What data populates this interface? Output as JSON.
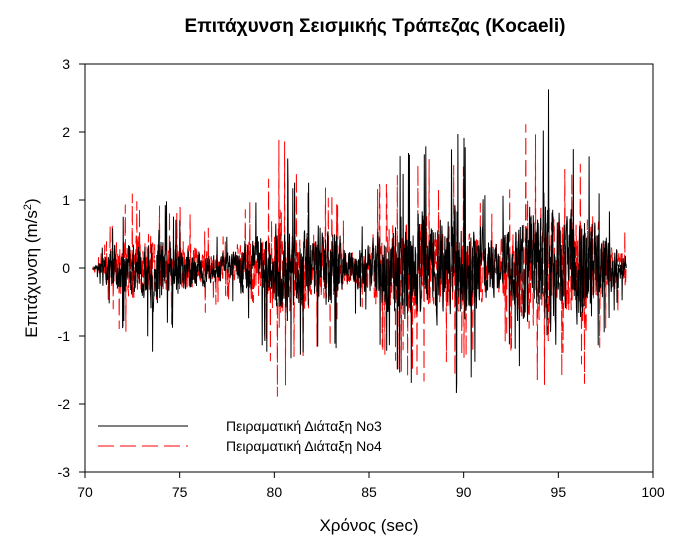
{
  "chart_data": {
    "type": "line",
    "title": "Επιτάχυνση Σεισμικής Τράπεζας (Kocaeli)",
    "xlabel": "Χρόνος (sec)",
    "ylabel_main": "Επιτάχυνση (m/s",
    "ylabel_sup": "2",
    "ylabel_tail": ")",
    "xlim": [
      70,
      100
    ],
    "ylim": [
      -3,
      3
    ],
    "xticks": [
      70,
      75,
      80,
      85,
      90,
      95,
      100
    ],
    "yticks": [
      -3,
      -2,
      -1,
      0,
      1,
      2,
      3
    ],
    "grid": false,
    "legend_position": "bottom-left",
    "x_range": [
      70.4,
      98.6
    ],
    "series": [
      {
        "name": "Πειραματική Διάταξη Νο3",
        "color": "#000000",
        "dash": "solid",
        "envelope": [
          [
            70.4,
            0.05
          ],
          [
            70.6,
            0.1
          ],
          [
            70.9,
            0.3
          ],
          [
            71.5,
            0.8
          ],
          [
            72.3,
            1.0
          ],
          [
            73.1,
            1.0
          ],
          [
            73.6,
            1.5
          ],
          [
            74.5,
            0.9
          ],
          [
            75.5,
            0.8
          ],
          [
            76.5,
            0.6
          ],
          [
            77.5,
            0.5
          ],
          [
            78.5,
            0.9
          ],
          [
            79.5,
            1.2
          ],
          [
            80.4,
            1.9
          ],
          [
            81.2,
            1.3
          ],
          [
            82.3,
            1.4
          ],
          [
            82.8,
            1.6
          ],
          [
            83.8,
            0.7
          ],
          [
            84.7,
            0.7
          ],
          [
            85.6,
            1.2
          ],
          [
            86.4,
            1.6
          ],
          [
            87.5,
            2.0
          ],
          [
            88.3,
            1.8
          ],
          [
            89.0,
            1.6
          ],
          [
            89.8,
            2.1
          ],
          [
            90.8,
            1.3
          ],
          [
            91.8,
            1.0
          ],
          [
            92.4,
            1.2
          ],
          [
            93.3,
            2.0
          ],
          [
            94.0,
            1.9
          ],
          [
            94.6,
            2.9
          ],
          [
            95.3,
            1.7
          ],
          [
            96.0,
            1.8
          ],
          [
            96.7,
            1.8
          ],
          [
            97.3,
            1.2
          ],
          [
            98.0,
            0.7
          ],
          [
            98.6,
            0.4
          ]
        ]
      },
      {
        "name": "Πειραματική Διάταξη Νο4",
        "color": "#ff0000",
        "dash": "long-dash",
        "envelope": [
          [
            70.4,
            0.05
          ],
          [
            70.6,
            0.1
          ],
          [
            70.9,
            0.3
          ],
          [
            71.5,
            0.8
          ],
          [
            72.3,
            1.1
          ],
          [
            73.1,
            1.1
          ],
          [
            73.6,
            1.4
          ],
          [
            74.5,
            0.9
          ],
          [
            75.5,
            1.0
          ],
          [
            76.5,
            0.6
          ],
          [
            77.5,
            0.5
          ],
          [
            78.5,
            1.0
          ],
          [
            79.5,
            1.3
          ],
          [
            80.4,
            2.2
          ],
          [
            81.2,
            1.4
          ],
          [
            82.3,
            1.2
          ],
          [
            82.8,
            1.3
          ],
          [
            83.8,
            0.7
          ],
          [
            84.7,
            0.7
          ],
          [
            85.6,
            1.3
          ],
          [
            86.4,
            1.5
          ],
          [
            87.5,
            1.8
          ],
          [
            88.3,
            1.6
          ],
          [
            89.0,
            1.4
          ],
          [
            89.8,
            1.7
          ],
          [
            90.8,
            1.1
          ],
          [
            91.8,
            0.9
          ],
          [
            92.4,
            1.2
          ],
          [
            93.3,
            2.3
          ],
          [
            94.0,
            2.0
          ],
          [
            94.6,
            2.5
          ],
          [
            95.3,
            1.5
          ],
          [
            96.0,
            1.7
          ],
          [
            96.7,
            2.1
          ],
          [
            97.3,
            1.1
          ],
          [
            98.0,
            0.7
          ],
          [
            98.6,
            0.6
          ]
        ]
      }
    ]
  }
}
